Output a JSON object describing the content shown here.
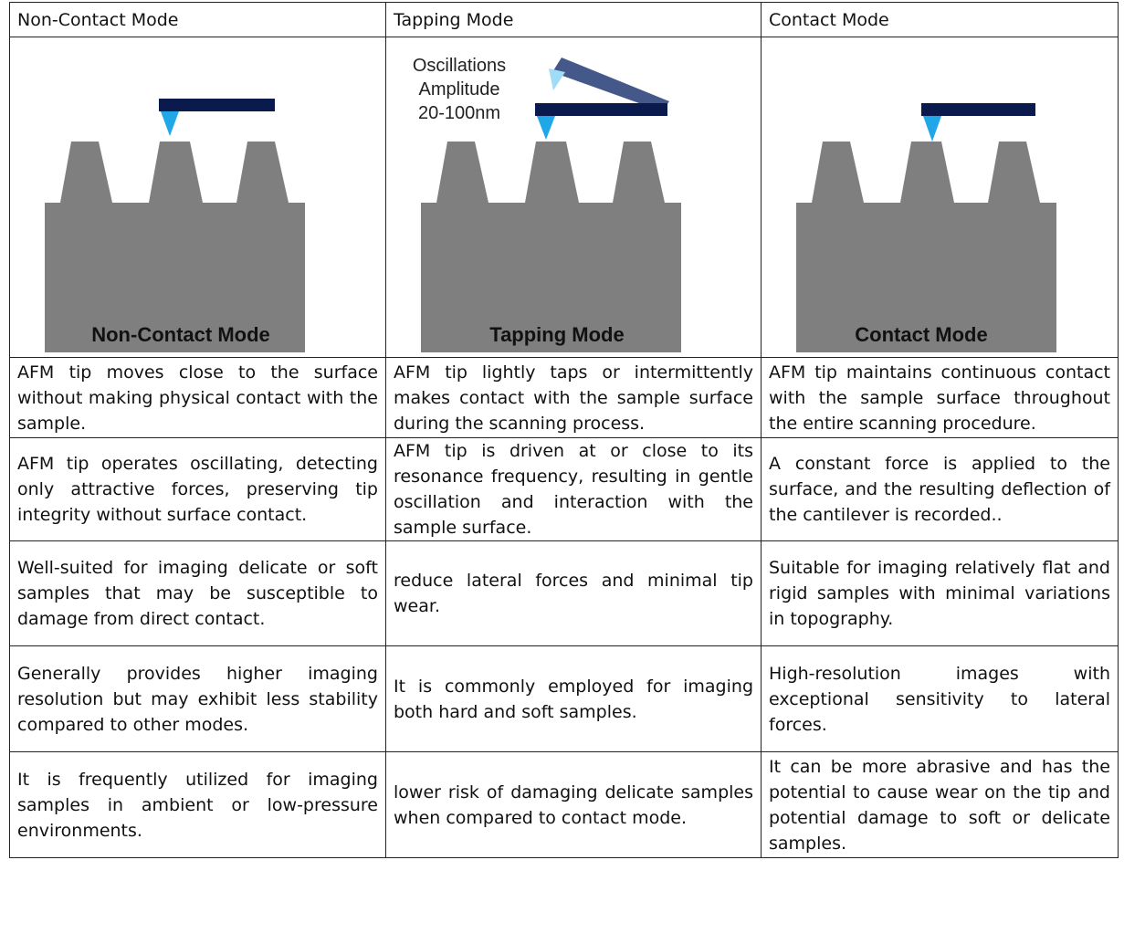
{
  "header": [
    "Non-Contact Mode",
    "Tapping Mode",
    "Contact Mode"
  ],
  "diagrams": [
    {
      "label": "Non-Contact Mode"
    },
    {
      "label": "Tapping Mode",
      "annotation": [
        "Oscillations",
        "Amplitude",
        "20-100nm"
      ]
    },
    {
      "label": "Contact Mode"
    }
  ],
  "table": {
    "rows": [
      [
        "AFM tip moves close to the surface without making physical contact with the sample.",
        "AFM tip lightly taps or intermittently makes contact with the sample surface during the scanning process.",
        "AFM tip maintains continuous contact with the sample surface throughout the entire scanning procedure."
      ],
      [
        "AFM tip operates oscillating, detecting only attractive forces, preserving tip integrity without surface contact.",
        "AFM tip is driven at or close to its resonance frequency, resulting in gentle oscillation and interaction with the sample surface.",
        "A constant force is applied to the surface, and the resulting deflection of the cantilever is recorded.."
      ],
      [
        "Well-suited for imaging delicate or soft samples that may be susceptible to damage from direct contact.",
        "reduce lateral forces and minimal tip wear.",
        "Suitable for imaging relatively flat and rigid samples with minimal variations in topography."
      ],
      [
        "Generally provides higher imaging resolution but may exhibit less stability compared to other modes.",
        "It is commonly employed for imaging both hard and soft samples.",
        "High-resolution images with exceptional sensitivity to lateral forces."
      ],
      [
        "It is frequently utilized for imaging samples in ambient or low-pressure environments.",
        "lower risk of damaging delicate samples when compared to contact mode.",
        "It can be more abrasive and has the potential to cause wear on the tip and potential damage to soft or delicate samples."
      ]
    ]
  }
}
